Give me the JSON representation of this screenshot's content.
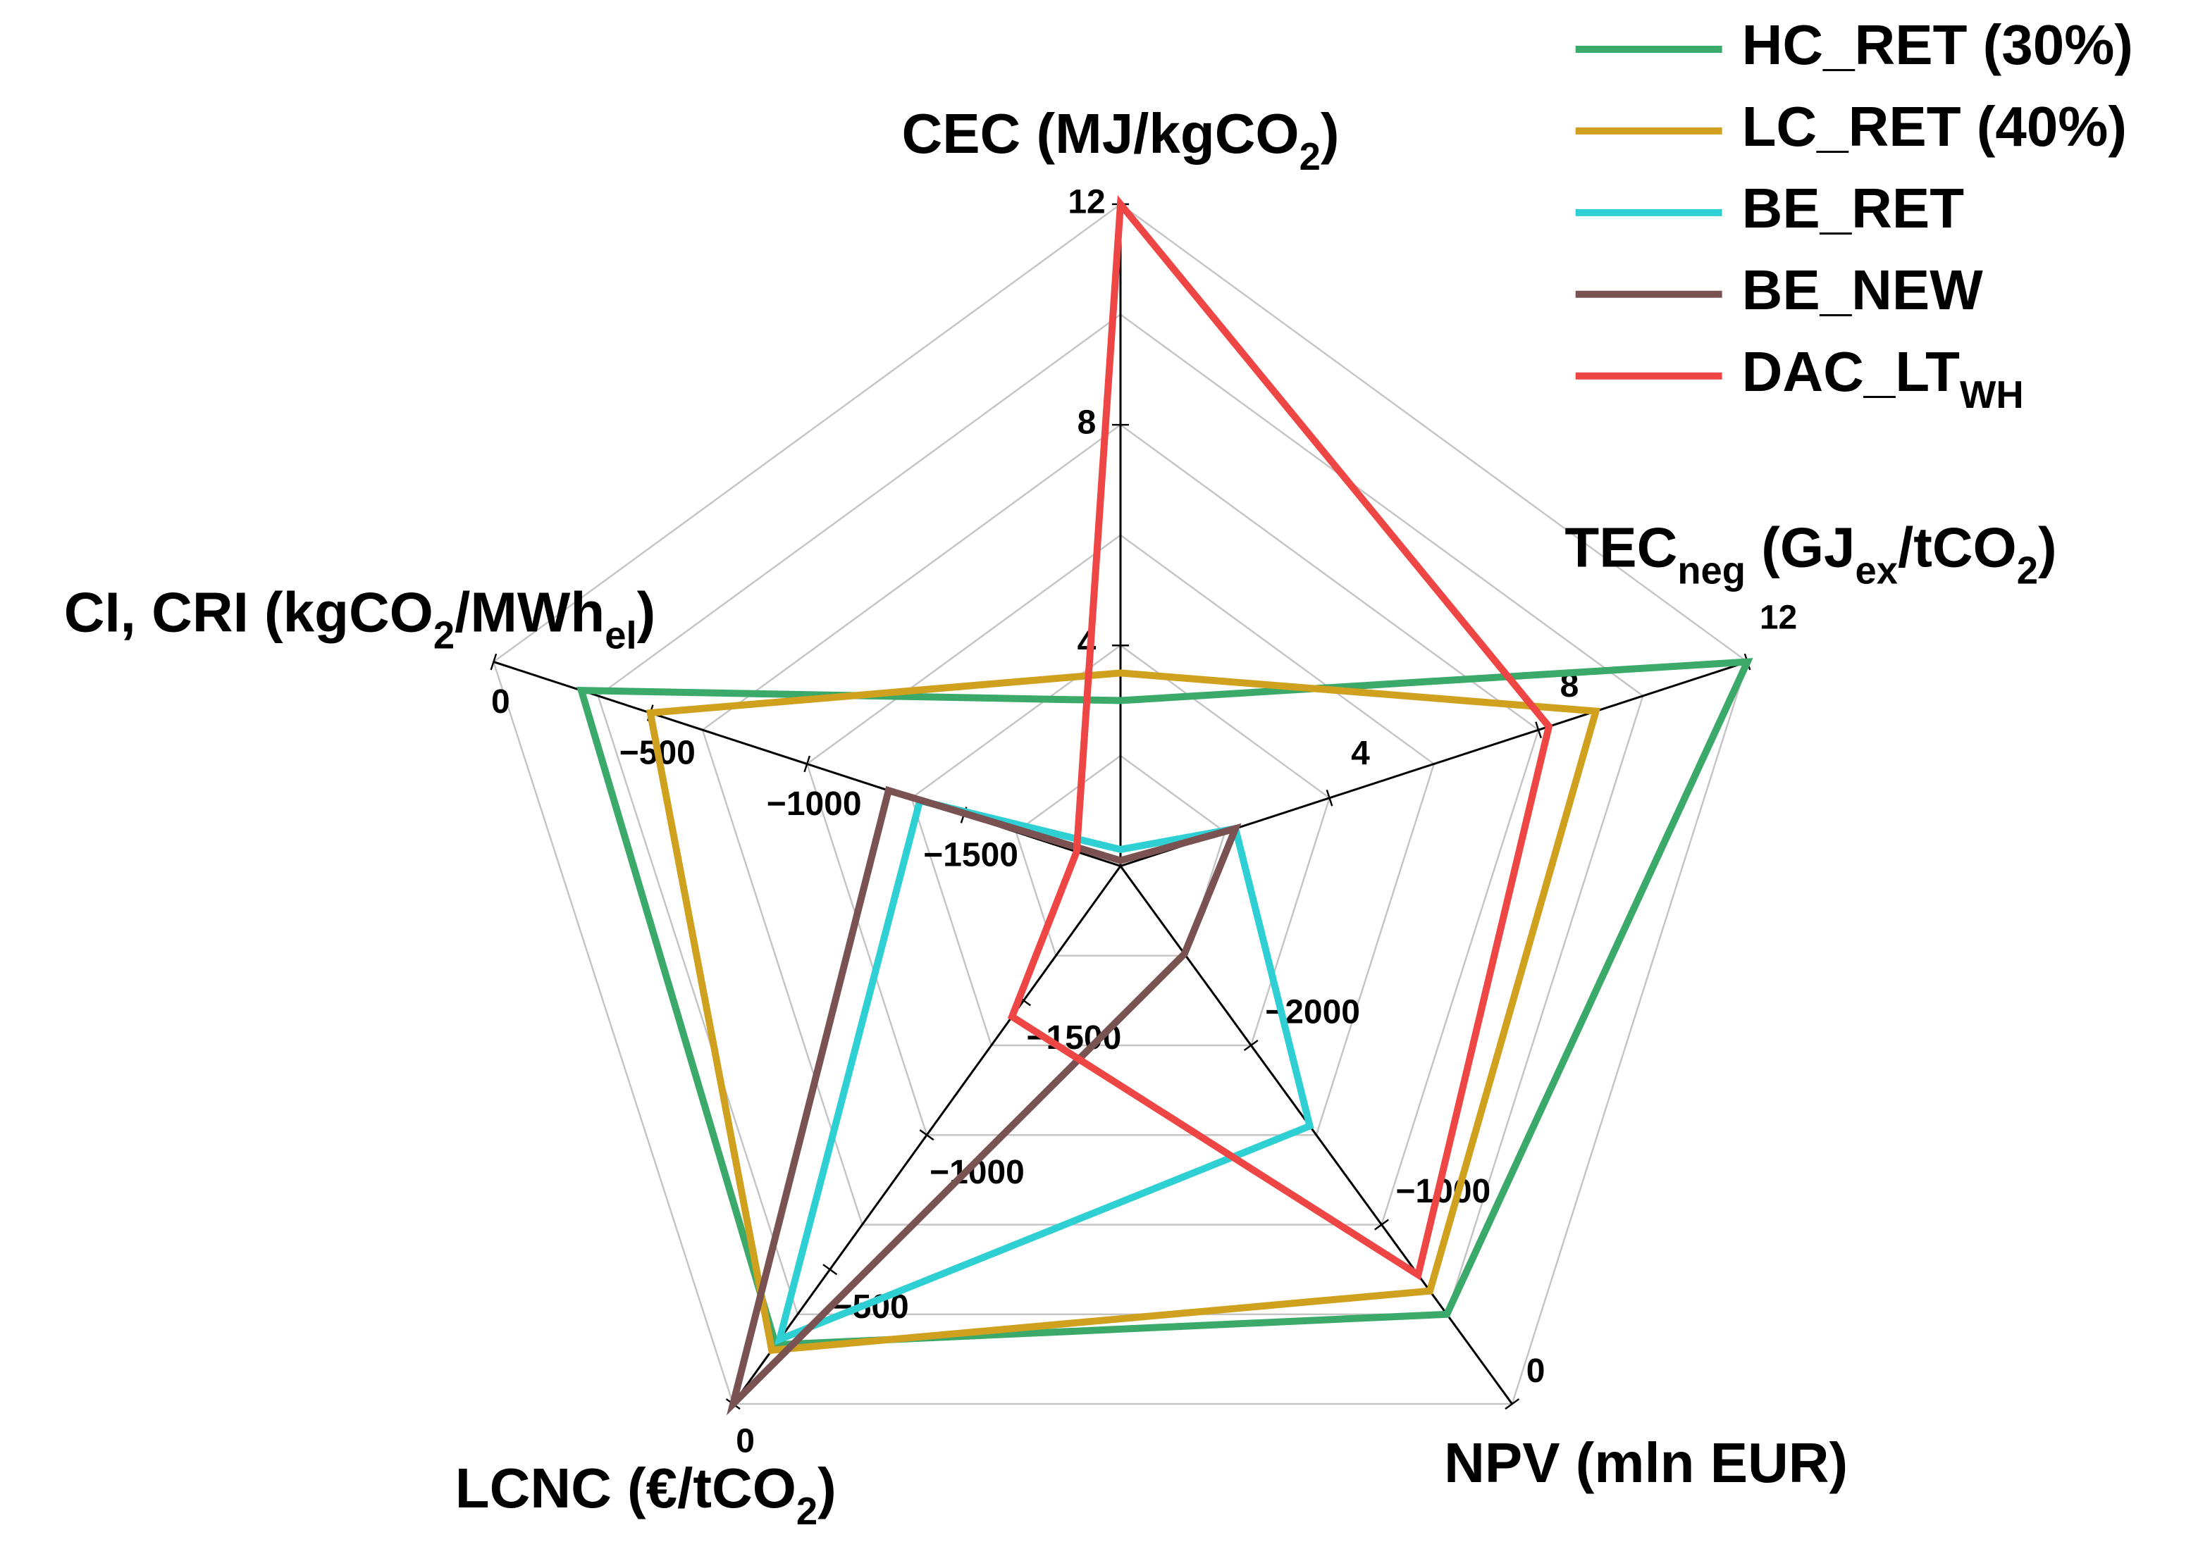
{
  "chart_data": {
    "type": "radar",
    "grid_levels": 6,
    "legend": "upper right",
    "axes": [
      {
        "label": [
          {
            "text": "CEC (MJ/kgCO"
          },
          {
            "text": "2",
            "sub": true
          },
          {
            "text": ")"
          }
        ],
        "lim": [
          0,
          12
        ],
        "ticks": [
          4,
          8,
          12
        ]
      },
      {
        "label": [
          {
            "text": "TEC"
          },
          {
            "text": "neg",
            "sub": true
          },
          {
            "text": " (GJ"
          },
          {
            "text": "ex",
            "sub": true
          },
          {
            "text": "/tCO"
          },
          {
            "text": "2",
            "sub": true
          },
          {
            "text": ")"
          }
        ],
        "lim": [
          0,
          12
        ],
        "ticks": [
          4,
          8,
          12
        ]
      },
      {
        "label": [
          {
            "text": "NPV (mln EUR)"
          }
        ],
        "lim": [
          -3000,
          0
        ],
        "ticks": [
          0,
          {
            "value": -1000,
            "label": "−1000"
          },
          {
            "value": -2000,
            "label": "−2000"
          }
        ]
      },
      {
        "label": [
          {
            "text": "LCNC (€/tCO"
          },
          {
            "text": "2",
            "sub": true
          },
          {
            "text": ")"
          }
        ],
        "lim": [
          -2000,
          0
        ],
        "ticks": [
          0,
          {
            "value": -500,
            "label": "−500"
          },
          {
            "value": -1000,
            "label": "−1000"
          },
          {
            "value": -1500,
            "label": "−1500"
          }
        ]
      },
      {
        "label": [
          {
            "text": "CI, CRI (kgCO"
          },
          {
            "text": "2",
            "sub": true
          },
          {
            "text": "/MWh"
          },
          {
            "text": "el",
            "sub": true
          },
          {
            "text": ")"
          }
        ],
        "lim": [
          -2000,
          0
        ],
        "ticks": [
          0,
          {
            "value": -500,
            "label": "−500"
          },
          {
            "value": -1000,
            "label": "−1000"
          },
          {
            "value": -1500,
            "label": "−1500"
          }
        ]
      }
    ],
    "series": [
      {
        "name": [
          {
            "text": "HC_RET (30%)"
          }
        ],
        "color": "#3aa96a",
        "values": [
          3,
          12,
          -500,
          -220,
          -280
        ]
      },
      {
        "name": [
          {
            "text": "LC_RET (40%)"
          }
        ],
        "color": "#cfa11f",
        "values": [
          3.5,
          9.1,
          -630,
          -200,
          -500
        ]
      },
      {
        "name": [
          {
            "text": "BE_RET"
          }
        ],
        "color": "#2fd0d3",
        "values": [
          0.3,
          2.2,
          -1550,
          -240,
          -1360
        ]
      },
      {
        "name": [
          {
            "text": "BE_NEW"
          }
        ],
        "color": "#7a5252",
        "values": [
          0.1,
          2.2,
          -2510,
          0,
          -1260
        ]
      },
      {
        "name": [
          {
            "text": "DAC_LT"
          },
          {
            "text": "WH",
            "sub": true
          }
        ],
        "color": "#ee4545",
        "values": [
          12,
          8.2,
          -720,
          -1440,
          -1860
        ]
      }
    ]
  }
}
